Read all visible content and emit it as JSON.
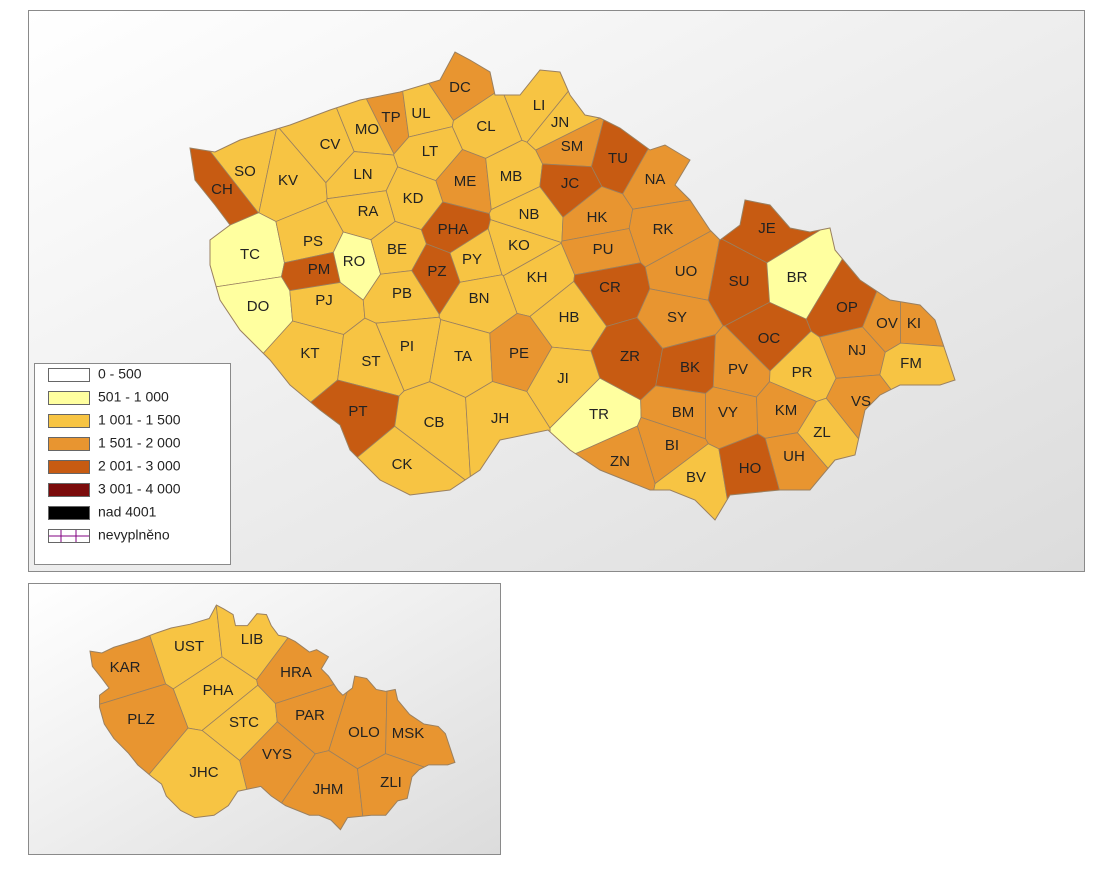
{
  "main_map": {
    "districts": [
      {
        "label": "CH",
        "color": "#c75b12"
      },
      {
        "label": "SO",
        "color": "#f7c443"
      },
      {
        "label": "KV",
        "color": "#f7c443"
      },
      {
        "label": "CV",
        "color": "#f7c443"
      },
      {
        "label": "MO",
        "color": "#f7c443"
      },
      {
        "label": "TP",
        "color": "#e89530"
      },
      {
        "label": "UL",
        "color": "#f7c443"
      },
      {
        "label": "DC",
        "color": "#e89530"
      },
      {
        "label": "LI",
        "color": "#f7c443"
      },
      {
        "label": "CL",
        "color": "#f7c443"
      },
      {
        "label": "JN",
        "color": "#f7c443"
      },
      {
        "label": "SM",
        "color": "#e89530"
      },
      {
        "label": "TU",
        "color": "#c75b12"
      },
      {
        "label": "LT",
        "color": "#f7c443"
      },
      {
        "label": "LN",
        "color": "#f7c443"
      },
      {
        "label": "ME",
        "color": "#e89530"
      },
      {
        "label": "MB",
        "color": "#f7c443"
      },
      {
        "label": "JC",
        "color": "#c75b12"
      },
      {
        "label": "NA",
        "color": "#e89530"
      },
      {
        "label": "RA",
        "color": "#f7c443"
      },
      {
        "label": "KD",
        "color": "#f7c443"
      },
      {
        "label": "NB",
        "color": "#f7c443"
      },
      {
        "label": "HK",
        "color": "#e89530"
      },
      {
        "label": "RK",
        "color": "#e89530"
      },
      {
        "label": "JE",
        "color": "#c75b12"
      },
      {
        "label": "TC",
        "color": "#ffff9f"
      },
      {
        "label": "PS",
        "color": "#f7c443"
      },
      {
        "label": "PM",
        "color": "#c75b12"
      },
      {
        "label": "RO",
        "color": "#ffff9f"
      },
      {
        "label": "BE",
        "color": "#f7c443"
      },
      {
        "label": "PHA",
        "color": "#c75b12"
      },
      {
        "label": "PZ",
        "color": "#c75b12"
      },
      {
        "label": "PY",
        "color": "#f7c443"
      },
      {
        "label": "KO",
        "color": "#f7c443"
      },
      {
        "label": "PU",
        "color": "#e89530"
      },
      {
        "label": "UO",
        "color": "#e89530"
      },
      {
        "label": "SU",
        "color": "#c75b12"
      },
      {
        "label": "BR",
        "color": "#ffff9f"
      },
      {
        "label": "KH",
        "color": "#f7c443"
      },
      {
        "label": "DO",
        "color": "#ffff9f"
      },
      {
        "label": "PJ",
        "color": "#f7c443"
      },
      {
        "label": "PB",
        "color": "#f7c443"
      },
      {
        "label": "BN",
        "color": "#f7c443"
      },
      {
        "label": "CR",
        "color": "#c75b12"
      },
      {
        "label": "SY",
        "color": "#e89530"
      },
      {
        "label": "OP",
        "color": "#c75b12"
      },
      {
        "label": "OV",
        "color": "#e89530"
      },
      {
        "label": "KI",
        "color": "#e89530"
      },
      {
        "label": "HB",
        "color": "#f7c443"
      },
      {
        "label": "OC",
        "color": "#c75b12"
      },
      {
        "label": "NJ",
        "color": "#e89530"
      },
      {
        "label": "FM",
        "color": "#f7c443"
      },
      {
        "label": "KT",
        "color": "#f7c443"
      },
      {
        "label": "ST",
        "color": "#f7c443"
      },
      {
        "label": "PI",
        "color": "#f7c443"
      },
      {
        "label": "TA",
        "color": "#f7c443"
      },
      {
        "label": "PE",
        "color": "#e89530"
      },
      {
        "label": "ZR",
        "color": "#c75b12"
      },
      {
        "label": "BK",
        "color": "#c75b12"
      },
      {
        "label": "PV",
        "color": "#e89530"
      },
      {
        "label": "PR",
        "color": "#f7c443"
      },
      {
        "label": "JI",
        "color": "#f7c443"
      },
      {
        "label": "VS",
        "color": "#e89530"
      },
      {
        "label": "PT",
        "color": "#c75b12"
      },
      {
        "label": "TR",
        "color": "#ffff9f"
      },
      {
        "label": "BM",
        "color": "#e89530"
      },
      {
        "label": "VY",
        "color": "#e89530"
      },
      {
        "label": "KM",
        "color": "#e89530"
      },
      {
        "label": "CB",
        "color": "#f7c443"
      },
      {
        "label": "JH",
        "color": "#f7c443"
      },
      {
        "label": "BI",
        "color": "#e89530"
      },
      {
        "label": "ZL",
        "color": "#f7c443"
      },
      {
        "label": "UH",
        "color": "#e89530"
      },
      {
        "label": "CK",
        "color": "#f7c443"
      },
      {
        "label": "ZN",
        "color": "#e89530"
      },
      {
        "label": "BV",
        "color": "#f7c443"
      },
      {
        "label": "HO",
        "color": "#c75b12"
      }
    ]
  },
  "legend": {
    "items": [
      {
        "label": "0 - 500",
        "color": "#ffffff"
      },
      {
        "label": "501 - 1 000",
        "color": "#ffff9f"
      },
      {
        "label": "1 001 - 1 500",
        "color": "#f7c443"
      },
      {
        "label": "1 501 - 2 000",
        "color": "#e89530"
      },
      {
        "label": "2 001 - 3 000",
        "color": "#c75b12"
      },
      {
        "label": "3 001 - 4 000",
        "color": "#7b0b0b"
      },
      {
        "label": "nad 4001",
        "color": "#000000"
      },
      {
        "label": "nevyplněno",
        "color": "#800080",
        "pattern": "grid"
      }
    ]
  },
  "overview_map": {
    "regions": [
      {
        "label": "KAR",
        "color": "#e89530"
      },
      {
        "label": "UST",
        "color": "#f7c443"
      },
      {
        "label": "LIB",
        "color": "#f7c443"
      },
      {
        "label": "HRA",
        "color": "#e89530"
      },
      {
        "label": "PHA",
        "color": "#f7c443"
      },
      {
        "label": "STC",
        "color": "#f7c443"
      },
      {
        "label": "PLZ",
        "color": "#e89530"
      },
      {
        "label": "PAR",
        "color": "#e89530"
      },
      {
        "label": "VYS",
        "color": "#e89530"
      },
      {
        "label": "OLO",
        "color": "#e89530"
      },
      {
        "label": "MSK",
        "color": "#e89530"
      },
      {
        "label": "JHC",
        "color": "#f7c443"
      },
      {
        "label": "JHM",
        "color": "#e89530"
      },
      {
        "label": "ZLI",
        "color": "#e89530"
      }
    ]
  }
}
